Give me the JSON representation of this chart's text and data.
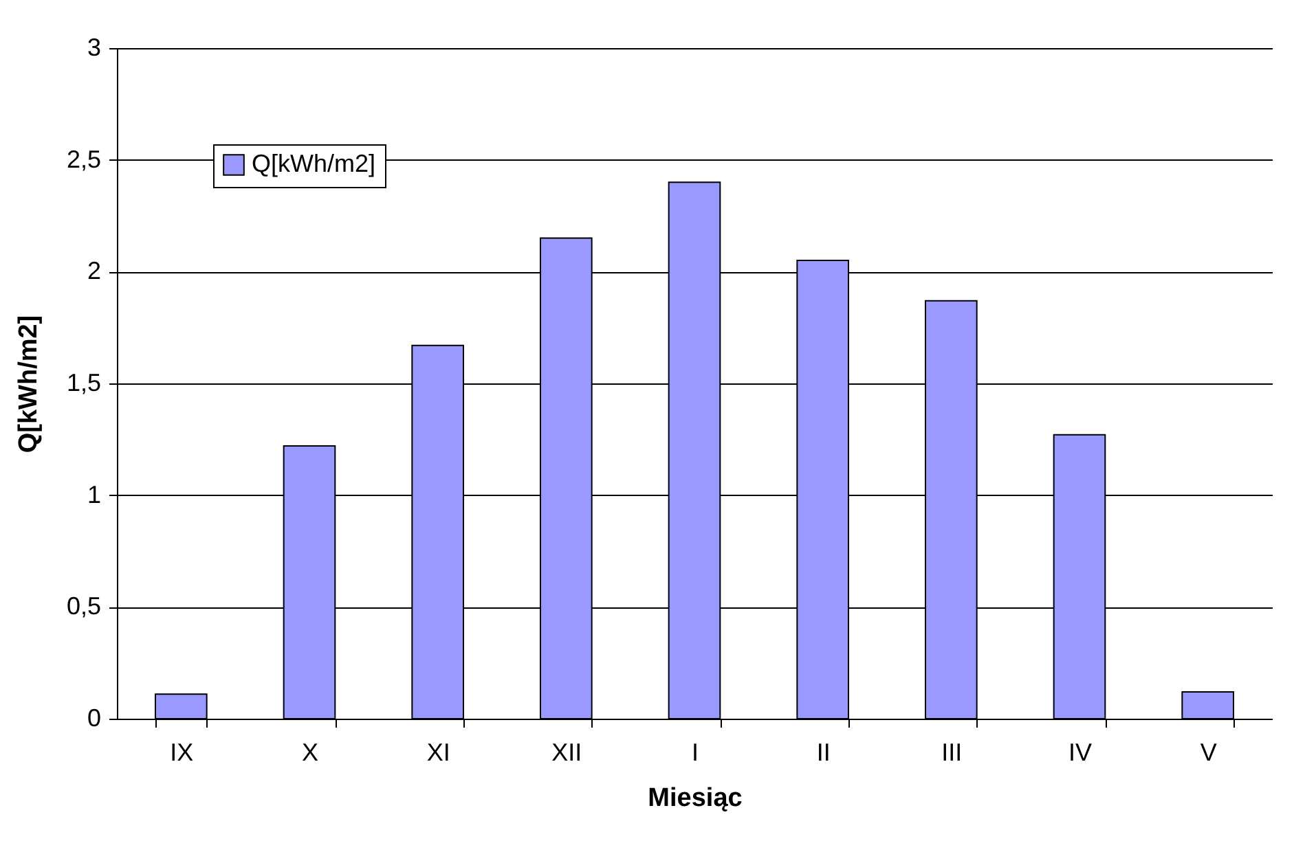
{
  "chart_data": {
    "type": "bar",
    "xlabel": "Miesiąc",
    "ylabel": "Q[kWh/m2]",
    "categories": [
      "IX",
      "X",
      "XI",
      "XII",
      "I",
      "II",
      "III",
      "IV",
      "V"
    ],
    "series": [
      {
        "name": "Q[kWh/m2]",
        "color": "#9999ff",
        "values": [
          0.11,
          1.22,
          1.67,
          2.15,
          2.4,
          2.05,
          1.87,
          1.27,
          0.12
        ]
      }
    ],
    "ylim": [
      0,
      3
    ],
    "yticks": [
      0,
      {
        "value": 0.5,
        "label": "0,5"
      },
      1,
      {
        "value": 1.5,
        "label": "1,5"
      },
      2,
      {
        "value": 2.5,
        "label": "2,5"
      },
      3
    ],
    "grid": "y",
    "legend": "top left"
  }
}
